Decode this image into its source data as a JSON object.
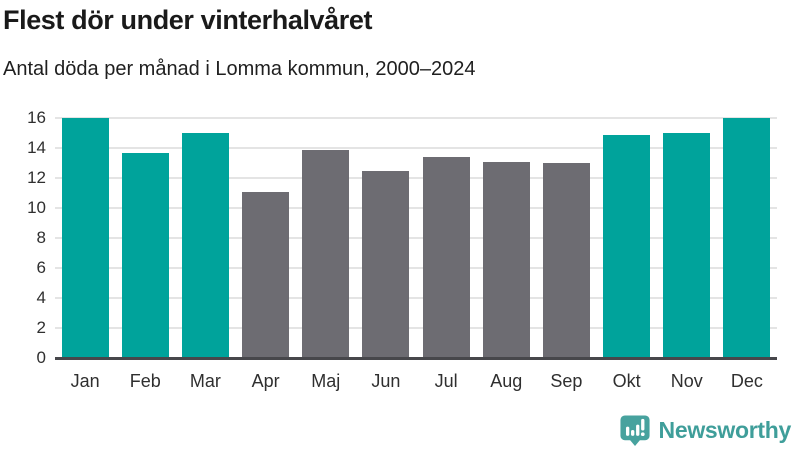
{
  "header": {
    "title": "Flest dör under vinterhalvåret",
    "subtitle": "Antal döda per månad i Lomma kommun, 2000–2024"
  },
  "chart_data": {
    "type": "bar",
    "title": "Flest dör under vinterhalvåret",
    "subtitle": "Antal döda per månad i Lomma kommun, 2000–2024",
    "categories": [
      "Jan",
      "Feb",
      "Mar",
      "Apr",
      "Maj",
      "Jun",
      "Jul",
      "Aug",
      "Sep",
      "Okt",
      "Nov",
      "Dec"
    ],
    "values": [
      16.0,
      13.7,
      15.0,
      11.1,
      13.9,
      12.5,
      13.4,
      13.1,
      13.0,
      14.9,
      15.0,
      16.0
    ],
    "highlighted": [
      true,
      true,
      true,
      false,
      false,
      false,
      false,
      false,
      false,
      true,
      true,
      true
    ],
    "xlabel": "",
    "ylabel": "",
    "ylim": [
      0,
      16
    ],
    "ytick_step": 2,
    "grid": true,
    "legend": "none",
    "colors": {
      "highlight": "#00a39b",
      "base": "#6d6c72",
      "gridline": "#e4e4e4",
      "axis_line": "#47474b",
      "tick_text": "#2f2f2f"
    }
  },
  "footer": {
    "brand": "Newsworthy",
    "brand_color": "#3f9e9a",
    "icon_color": "#47a29e",
    "logo_icon": "speech-bubble-bar-chart-exclamation"
  }
}
